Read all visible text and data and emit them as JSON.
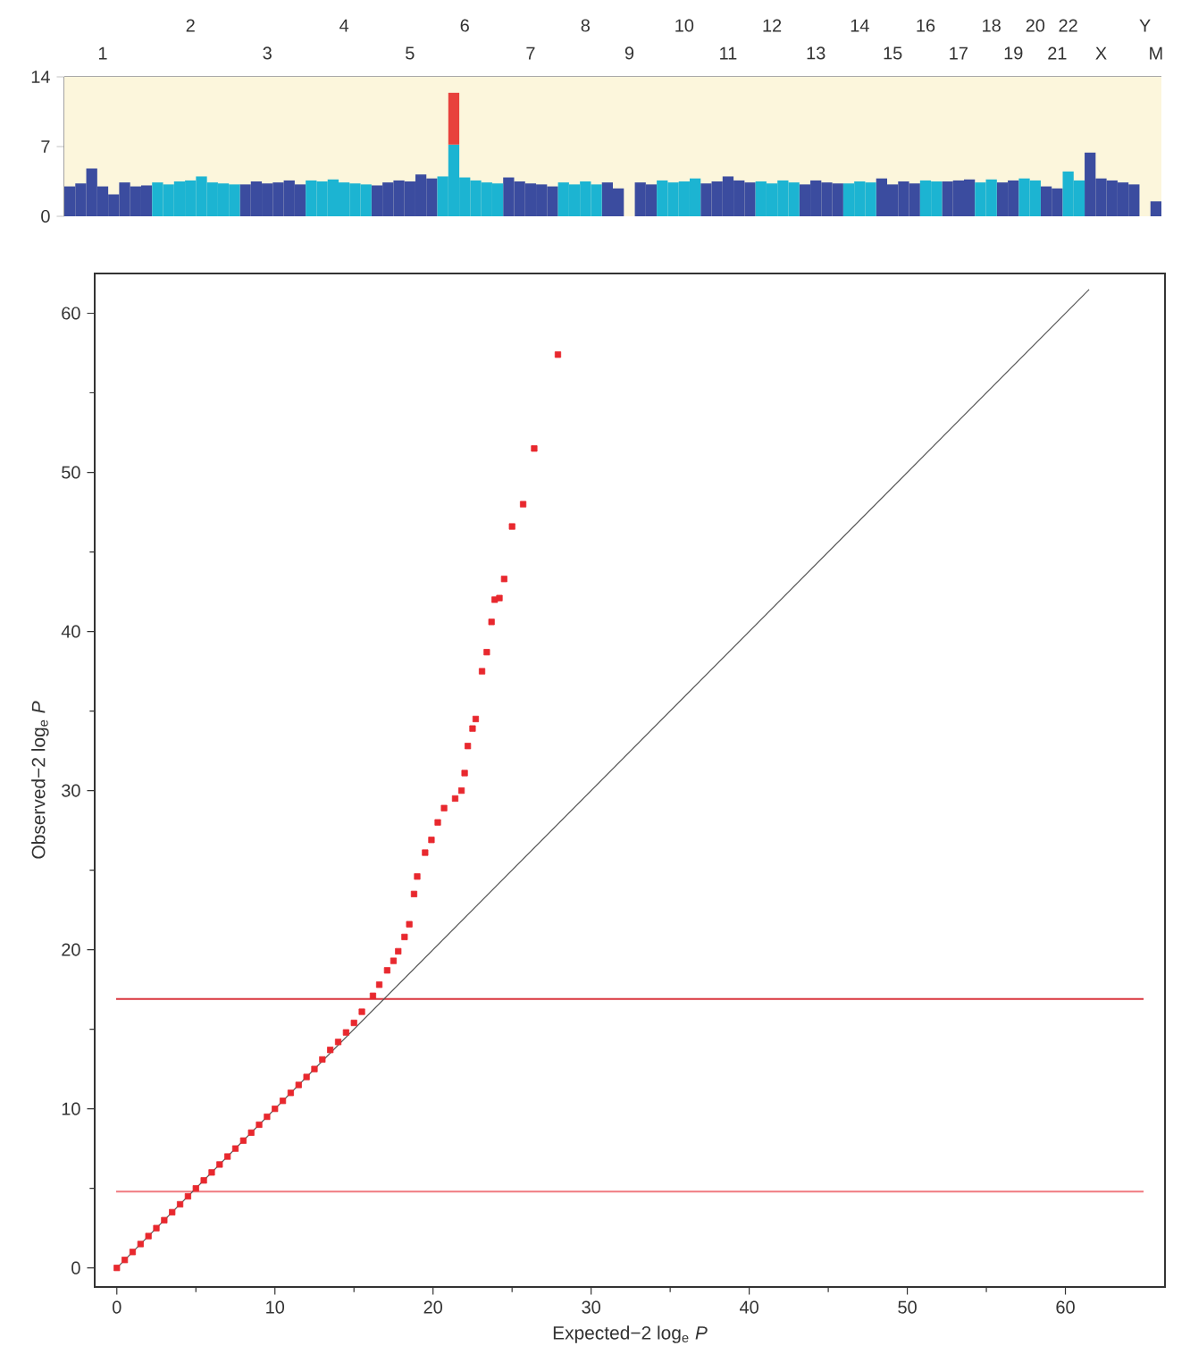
{
  "chart_data": [
    {
      "type": "bar",
      "stacked": true,
      "ylim": [
        0,
        14
      ],
      "yticks": [
        0,
        7,
        14
      ],
      "categories": [
        null,
        null,
        null,
        "1",
        null,
        null,
        null,
        null,
        null,
        null,
        null,
        "2",
        null,
        null,
        null,
        null,
        null,
        null,
        "3",
        null,
        null,
        null,
        null,
        null,
        null,
        "4",
        null,
        null,
        null,
        null,
        null,
        "5",
        null,
        null,
        null,
        null,
        "6",
        null,
        null,
        null,
        null,
        null,
        "7",
        null,
        null,
        null,
        null,
        "8",
        null,
        null,
        null,
        "9",
        null,
        null,
        null,
        null,
        "10",
        null,
        null,
        null,
        "11",
        null,
        null,
        null,
        "12",
        null,
        null,
        null,
        "13",
        null,
        null,
        null,
        "14",
        null,
        null,
        "15",
        null,
        null,
        "16",
        null,
        null,
        "17",
        null,
        null,
        "18",
        null,
        "19",
        null,
        "20",
        null,
        "21",
        "22",
        null,
        null,
        "X",
        null,
        null,
        null,
        "Y",
        "M"
      ],
      "bands": [
        {
          "axis": "y",
          "from": 0,
          "to": 14,
          "color": "#fcf6dc"
        }
      ],
      "series": [
        {
          "color": "#3b4c9f",
          "values": [
            3.0,
            3.3,
            4.8,
            3.0,
            2.2,
            3.4,
            3.0,
            3.1,
            null,
            null,
            null,
            null,
            null,
            null,
            null,
            null,
            3.2,
            3.5,
            3.3,
            3.4,
            3.6,
            3.2,
            null,
            null,
            null,
            null,
            null,
            null,
            3.1,
            3.4,
            3.6,
            3.5,
            4.2,
            3.8,
            null,
            null,
            null,
            null,
            null,
            null,
            3.9,
            3.5,
            3.3,
            3.2,
            3.0,
            null,
            null,
            null,
            null,
            3.4,
            2.8,
            null,
            3.4,
            3.2,
            null,
            null,
            null,
            null,
            3.3,
            3.5,
            4.0,
            3.6,
            3.4,
            null,
            null,
            null,
            null,
            3.2,
            3.6,
            3.4,
            3.3,
            null,
            null,
            null,
            3.8,
            3.2,
            3.5,
            3.3,
            null,
            null,
            3.5,
            3.6,
            3.7,
            null,
            null,
            3.4,
            3.6,
            null,
            null,
            3.0,
            2.8,
            null,
            null,
            6.4,
            3.8,
            3.6,
            3.4,
            3.2,
            null,
            1.5
          ]
        },
        {
          "color": "#1cb4d2",
          "values": [
            null,
            null,
            null,
            null,
            null,
            null,
            null,
            null,
            3.4,
            3.2,
            3.5,
            3.6,
            4.0,
            3.4,
            3.3,
            3.2,
            null,
            null,
            null,
            null,
            null,
            null,
            3.6,
            3.5,
            3.7,
            3.4,
            3.3,
            3.2,
            null,
            null,
            null,
            null,
            null,
            null,
            4.0,
            7.2,
            3.9,
            3.6,
            3.4,
            3.3,
            null,
            null,
            null,
            null,
            null,
            3.4,
            3.2,
            3.5,
            3.2,
            null,
            null,
            null,
            null,
            null,
            3.6,
            3.4,
            3.5,
            3.8,
            null,
            null,
            null,
            null,
            null,
            3.5,
            3.3,
            3.6,
            3.4,
            null,
            null,
            null,
            null,
            3.3,
            3.5,
            3.4,
            null,
            null,
            null,
            null,
            3.6,
            3.5,
            null,
            null,
            null,
            3.4,
            3.7,
            null,
            null,
            3.8,
            3.6,
            null,
            null,
            4.5,
            3.6,
            null,
            null,
            null,
            null,
            null,
            null,
            null
          ]
        },
        {
          "color": "#e8413c",
          "values": [
            null,
            null,
            null,
            null,
            null,
            null,
            null,
            null,
            null,
            null,
            null,
            null,
            null,
            null,
            null,
            null,
            null,
            null,
            null,
            null,
            null,
            null,
            null,
            null,
            null,
            null,
            null,
            null,
            null,
            null,
            null,
            null,
            null,
            null,
            null,
            5.2,
            null,
            null,
            null,
            null,
            null,
            null,
            null,
            null,
            null,
            null,
            null,
            null,
            null,
            null,
            null,
            null,
            null,
            null,
            null,
            null,
            null,
            null,
            null,
            null,
            null,
            null,
            null,
            null,
            null,
            null,
            null,
            null,
            null,
            null,
            null,
            null,
            null,
            null,
            null,
            null,
            null,
            null,
            null,
            null,
            null,
            null,
            null,
            null,
            null,
            null,
            null,
            null,
            null,
            null,
            null,
            null,
            null,
            null,
            null,
            null,
            null,
            null,
            null,
            null
          ]
        }
      ]
    },
    {
      "type": "scatter",
      "xlabel": "Expected−2 log$_{e}$ *P*",
      "ylabel": "Observed−2 log$_{e}$ *P*",
      "xlim": [
        -1.4,
        66.3
      ],
      "ylim": [
        -1.2,
        62.5
      ],
      "xticks": [
        0,
        10,
        20,
        30,
        40,
        50,
        60
      ],
      "yticks": [
        0,
        10,
        20,
        30,
        40,
        50,
        60
      ],
      "marker": "square",
      "ref_lines": [
        {
          "axis": "y",
          "value": 16.9,
          "color": "#d9363e"
        },
        {
          "axis": "y",
          "value": 4.8,
          "color": "#f07a80"
        }
      ],
      "series": [
        {
          "color": "#e8282e",
          "x": [
            0,
            0.5,
            1,
            1.5,
            2,
            2.5,
            3,
            3.5,
            4,
            4.5,
            5,
            5.5,
            6,
            6.5,
            7,
            7.5,
            8,
            8.5,
            9,
            9.5,
            10,
            10.5,
            11,
            11.5,
            12,
            12.5,
            13,
            13.5,
            14,
            14.5,
            15,
            15.5,
            16.2,
            16.6,
            17.1,
            17.5,
            17.8,
            18.2,
            18.5,
            18.8,
            19.0,
            19.5,
            19.9,
            20.3,
            20.7,
            21.4,
            21.8,
            22.0,
            22.2,
            22.5,
            22.7,
            23.1,
            23.4,
            23.7,
            23.9,
            24.2,
            24.5,
            25.0,
            25.7,
            26.4,
            27.9
          ],
          "values": [
            0,
            0.5,
            1,
            1.5,
            2,
            2.5,
            3,
            3.5,
            4,
            4.5,
            5,
            5.5,
            6,
            6.5,
            7,
            7.5,
            8,
            8.5,
            9,
            9.5,
            10,
            10.5,
            11,
            11.5,
            12,
            12.5,
            13.1,
            13.7,
            14.2,
            14.8,
            15.4,
            16.1,
            17.1,
            17.8,
            18.7,
            19.3,
            19.9,
            20.8,
            21.6,
            23.5,
            24.6,
            26.1,
            26.9,
            28.0,
            28.9,
            29.5,
            30.0,
            31.1,
            32.8,
            33.9,
            34.5,
            37.5,
            38.7,
            40.6,
            42.0,
            42.1,
            43.3,
            46.6,
            48.0,
            51.5,
            57.4
          ]
        },
        {
          "type": "line",
          "marker": "none",
          "color": "#555555",
          "x": [
            0,
            61.5
          ],
          "values": [
            0,
            61.5
          ]
        }
      ]
    }
  ]
}
